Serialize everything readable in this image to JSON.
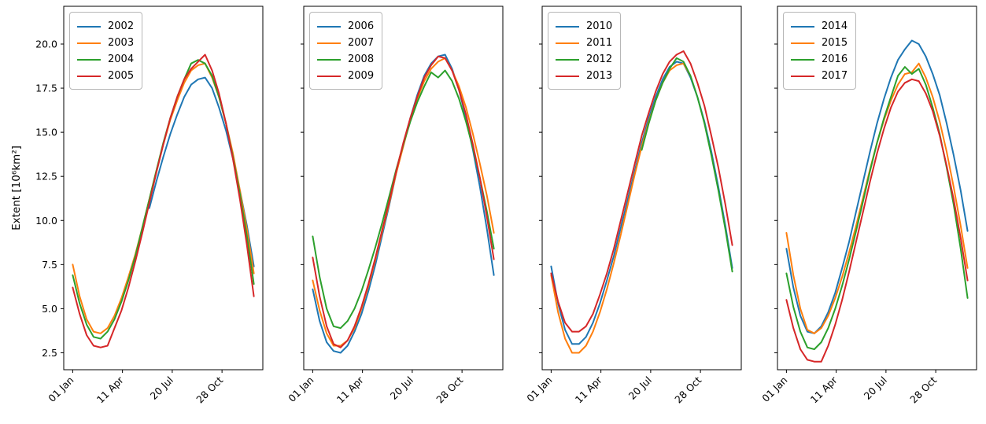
{
  "figure": {
    "background": "#ffffff"
  },
  "y_axis": {
    "label": "Extent [10⁶km²]",
    "tick_labels": [
      "2.5",
      "5.0",
      "7.5",
      "10.0",
      "12.5",
      "15.0",
      "17.5",
      "20.0"
    ],
    "tick_values": [
      2.5,
      5.0,
      7.5,
      10.0,
      12.5,
      15.0,
      17.5,
      20.0
    ]
  },
  "x_axis": {
    "tick_labels": [
      "01 Jan",
      "11 Apr",
      "20 Jul",
      "28 Oct"
    ],
    "tick_days": [
      1,
      101,
      201,
      301
    ]
  },
  "chart_data": [
    {
      "type": "line",
      "panel": 1,
      "xlabel": "",
      "ylabel": "Extent [10⁶km²]",
      "xlim_days": [
        -17,
        383
      ],
      "ylim": [
        1.54,
        22.14
      ],
      "grid": false,
      "legend_position": "upper-left",
      "x_days": [
        1,
        15,
        29,
        43,
        57,
        71,
        85,
        99,
        113,
        127,
        141,
        155,
        169,
        183,
        197,
        211,
        225,
        239,
        253,
        267,
        281,
        295,
        309,
        323,
        337,
        351,
        365
      ],
      "series": [
        {
          "name": "2002",
          "color": "#1f77b4",
          "values": [
            null,
            null,
            null,
            null,
            null,
            null,
            null,
            null,
            null,
            null,
            null,
            10.7,
            12.2,
            13.6,
            14.9,
            16.0,
            17.0,
            17.7,
            18.0,
            18.1,
            17.5,
            16.4,
            15.1,
            13.5,
            11.7,
            9.7,
            7.4
          ]
        },
        {
          "name": "2003",
          "color": "#ff7f0e",
          "values": [
            7.5,
            5.7,
            4.4,
            3.7,
            3.6,
            3.9,
            4.6,
            5.6,
            6.8,
            8.1,
            9.6,
            11.2,
            12.8,
            14.3,
            15.7,
            16.8,
            17.8,
            18.5,
            18.8,
            18.9,
            18.1,
            17.0,
            15.5,
            13.8,
            11.7,
            9.5,
            7.0
          ]
        },
        {
          "name": "2004",
          "color": "#2ca02c",
          "values": [
            6.9,
            5.3,
            4.1,
            3.4,
            3.3,
            3.7,
            4.4,
            5.4,
            6.6,
            8.0,
            9.6,
            11.2,
            12.8,
            14.4,
            15.8,
            17.0,
            18.0,
            18.9,
            19.1,
            18.9,
            18.2,
            17.0,
            15.5,
            13.6,
            11.5,
            9.1,
            6.4
          ]
        },
        {
          "name": "2005",
          "color": "#d62728",
          "values": [
            6.2,
            4.7,
            3.5,
            2.9,
            2.8,
            2.9,
            3.9,
            4.9,
            6.2,
            7.7,
            9.3,
            11.0,
            12.7,
            14.3,
            15.8,
            17.0,
            18.0,
            18.6,
            19.0,
            19.4,
            18.5,
            17.2,
            15.5,
            13.5,
            11.2,
            8.6,
            5.7
          ]
        }
      ]
    },
    {
      "type": "line",
      "panel": 2,
      "xlabel": "",
      "ylabel": "",
      "xlim_days": [
        -17,
        383
      ],
      "ylim": [
        1.54,
        22.14
      ],
      "grid": false,
      "legend_position": "upper-left",
      "x_days": [
        1,
        15,
        29,
        43,
        57,
        71,
        85,
        99,
        113,
        127,
        141,
        155,
        169,
        183,
        197,
        211,
        225,
        239,
        253,
        267,
        281,
        295,
        309,
        323,
        337,
        351,
        365
      ],
      "series": [
        {
          "name": "2006",
          "color": "#1f77b4",
          "values": [
            6.1,
            4.3,
            3.1,
            2.6,
            2.5,
            2.9,
            3.7,
            4.7,
            6.0,
            7.5,
            9.2,
            10.9,
            12.7,
            14.3,
            15.8,
            17.1,
            18.2,
            18.9,
            19.3,
            19.4,
            18.6,
            17.4,
            15.8,
            14.0,
            11.9,
            9.5,
            6.9
          ]
        },
        {
          "name": "2007",
          "color": "#ff7f0e",
          "values": [
            6.6,
            4.9,
            3.6,
            2.9,
            2.9,
            3.2,
            3.9,
            5.0,
            6.3,
            7.8,
            9.4,
            11.0,
            12.7,
            14.2,
            15.7,
            16.9,
            17.9,
            18.6,
            19.0,
            19.2,
            18.5,
            17.6,
            16.4,
            14.9,
            13.2,
            11.4,
            9.3
          ]
        },
        {
          "name": "2008",
          "color": "#2ca02c",
          "values": [
            9.1,
            6.8,
            5.0,
            4.0,
            3.9,
            4.3,
            5.0,
            6.0,
            7.2,
            8.5,
            9.9,
            11.4,
            12.9,
            14.3,
            15.6,
            16.7,
            17.6,
            18.4,
            18.1,
            18.5,
            17.9,
            16.9,
            15.6,
            14.1,
            12.4,
            10.5,
            8.4
          ]
        },
        {
          "name": "2009",
          "color": "#d62728",
          "values": [
            7.9,
            5.7,
            4.0,
            3.0,
            2.8,
            3.2,
            4.0,
            5.1,
            6.4,
            7.9,
            9.5,
            11.1,
            12.8,
            14.4,
            15.8,
            17.0,
            18.1,
            18.8,
            19.3,
            19.2,
            18.5,
            17.4,
            16.0,
            14.3,
            12.4,
            10.2,
            7.8
          ]
        }
      ]
    },
    {
      "type": "line",
      "panel": 3,
      "xlabel": "",
      "ylabel": "",
      "xlim_days": [
        -17,
        383
      ],
      "ylim": [
        1.54,
        22.14
      ],
      "grid": false,
      "legend_position": "upper-left",
      "x_days": [
        1,
        15,
        29,
        43,
        57,
        71,
        85,
        99,
        113,
        127,
        141,
        155,
        169,
        183,
        197,
        211,
        225,
        239,
        253,
        267,
        281,
        295,
        309,
        323,
        337,
        351,
        365
      ],
      "series": [
        {
          "name": "2010",
          "color": "#1f77b4",
          "values": [
            7.4,
            5.3,
            3.8,
            3.0,
            3.0,
            3.4,
            4.2,
            5.3,
            6.6,
            8.0,
            9.6,
            11.2,
            12.8,
            14.4,
            15.8,
            17.0,
            18.0,
            18.7,
            19.0,
            18.9,
            18.1,
            17.0,
            15.6,
            13.9,
            11.9,
            9.7,
            7.3
          ]
        },
        {
          "name": "2011",
          "color": "#ff7f0e",
          "values": [
            6.9,
            4.8,
            3.3,
            2.5,
            2.5,
            2.9,
            3.7,
            4.8,
            6.1,
            7.6,
            9.2,
            10.9,
            12.6,
            14.2,
            15.6,
            16.8,
            17.8,
            18.5,
            18.8,
            18.9,
            18.2,
            null,
            null,
            null,
            null,
            null,
            null
          ]
        },
        {
          "name": "2012",
          "color": "#2ca02c",
          "values": [
            null,
            null,
            null,
            null,
            null,
            null,
            null,
            null,
            null,
            null,
            null,
            null,
            null,
            14.0,
            15.5,
            16.8,
            17.8,
            18.6,
            19.2,
            19.0,
            18.2,
            17.0,
            15.5,
            13.7,
            11.7,
            9.5,
            7.1
          ]
        },
        {
          "name": "2013",
          "color": "#d62728",
          "values": [
            7.0,
            5.4,
            4.2,
            3.7,
            3.7,
            4.0,
            4.7,
            5.8,
            7.0,
            8.4,
            10.0,
            11.6,
            13.2,
            14.8,
            16.1,
            17.3,
            18.3,
            19.0,
            19.4,
            19.6,
            18.9,
            17.8,
            16.5,
            14.8,
            13.0,
            10.9,
            8.6
          ]
        }
      ]
    },
    {
      "type": "line",
      "panel": 4,
      "xlabel": "",
      "ylabel": "",
      "xlim_days": [
        -17,
        383
      ],
      "ylim": [
        1.54,
        22.14
      ],
      "grid": false,
      "legend_position": "upper-left",
      "x_days": [
        1,
        15,
        29,
        43,
        57,
        71,
        85,
        99,
        113,
        127,
        141,
        155,
        169,
        183,
        197,
        211,
        225,
        239,
        253,
        267,
        281,
        295,
        309,
        323,
        337,
        351,
        365
      ],
      "series": [
        {
          "name": "2014",
          "color": "#1f77b4",
          "values": [
            8.4,
            6.2,
            4.6,
            3.7,
            3.6,
            4.0,
            4.8,
            5.9,
            7.3,
            8.8,
            10.5,
            12.2,
            13.9,
            15.5,
            16.9,
            18.1,
            19.1,
            19.7,
            20.2,
            20.0,
            19.3,
            18.3,
            17.1,
            15.5,
            13.7,
            11.7,
            9.4
          ]
        },
        {
          "name": "2015",
          "color": "#ff7f0e",
          "values": [
            9.3,
            6.9,
            5.0,
            3.8,
            3.6,
            3.9,
            4.6,
            5.6,
            6.8,
            8.2,
            9.7,
            11.3,
            12.9,
            14.4,
            15.7,
            16.8,
            17.7,
            18.3,
            18.4,
            18.9,
            18.1,
            17.0,
            15.6,
            13.9,
            11.9,
            9.7,
            7.3
          ]
        },
        {
          "name": "2016",
          "color": "#2ca02c",
          "values": [
            7.0,
            5.1,
            3.7,
            2.8,
            2.7,
            3.1,
            3.9,
            5.0,
            6.3,
            7.8,
            9.4,
            11.1,
            12.8,
            14.4,
            15.8,
            17.0,
            18.2,
            18.7,
            18.3,
            18.6,
            17.7,
            16.4,
            14.9,
            13.0,
            10.9,
            8.4,
            5.6
          ]
        },
        {
          "name": "2017",
          "color": "#d62728",
          "values": [
            5.5,
            3.9,
            2.7,
            2.1,
            2.0,
            2.0,
            2.9,
            4.1,
            5.5,
            7.1,
            8.8,
            10.5,
            12.2,
            13.8,
            15.2,
            16.4,
            17.3,
            17.8,
            18.0,
            17.9,
            17.2,
            16.2,
            14.8,
            13.1,
            11.2,
            9.0,
            6.6
          ]
        }
      ]
    }
  ]
}
